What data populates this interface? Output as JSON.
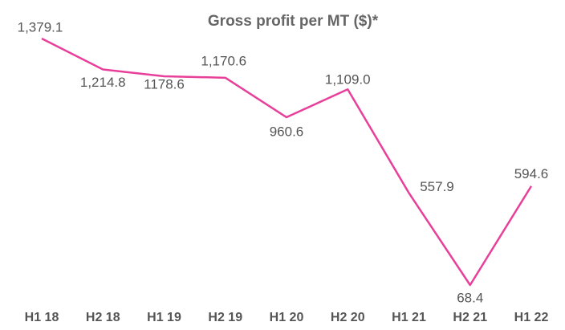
{
  "chart_data": {
    "type": "line",
    "title": "Gross profit per MT ($)*",
    "categories": [
      "H1 18",
      "H2 18",
      "H1 19",
      "H2 19",
      "H1 20",
      "H2 20",
      "H1 21",
      "H2 21",
      "H1 22"
    ],
    "series": [
      {
        "name": "Gross profit per MT",
        "color": "#e8409a",
        "values": [
          1379.1,
          1214.8,
          1178.6,
          1170.6,
          960.6,
          1109.0,
          557.9,
          68.4,
          594.6
        ],
        "value_labels": [
          "1,379.1",
          "1,214.8",
          "1178.6",
          "1,170.6",
          "960.6",
          "1,109.0",
          "557.9",
          "68.4",
          "594.6"
        ]
      }
    ]
  }
}
